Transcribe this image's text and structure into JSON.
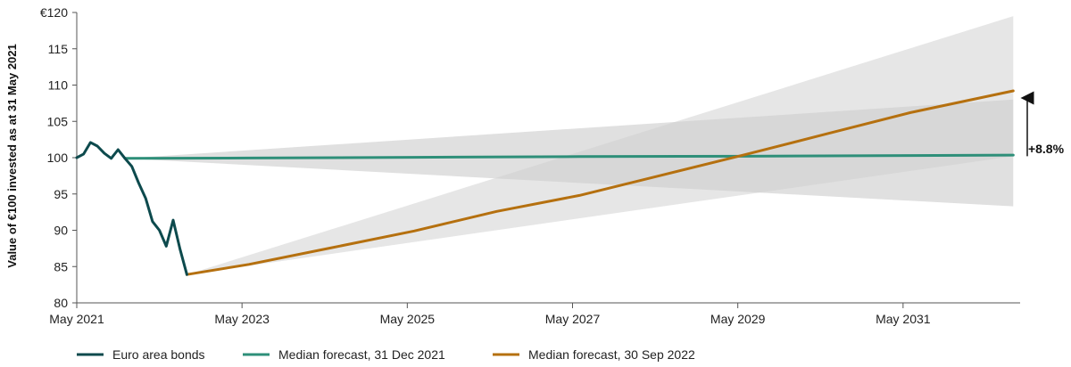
{
  "chart_data": {
    "type": "line",
    "title": "",
    "xlabel": "",
    "ylabel": "Value of €100 invested as at 31 May 2021",
    "xlim": [
      "2021-05",
      "2032-10"
    ],
    "ylim": [
      80,
      120
    ],
    "x_ticks": [
      "May 2021",
      "May 2023",
      "May 2025",
      "May 2027",
      "May 2029",
      "May 2031"
    ],
    "y_ticks": [
      "€120",
      "115",
      "110",
      "105",
      "100",
      "95",
      "90",
      "85",
      "80"
    ],
    "grid": false,
    "legend_position": "bottom-left",
    "series": [
      {
        "name": "Euro area bonds",
        "color": "#0d4a4d",
        "points": [
          [
            "2021-05",
            100.0
          ],
          [
            "2021-06",
            100.5
          ],
          [
            "2021-07",
            102.1
          ],
          [
            "2021-08",
            101.6
          ],
          [
            "2021-09",
            100.6
          ],
          [
            "2021-10",
            99.9
          ],
          [
            "2021-11",
            101.1
          ],
          [
            "2021-12",
            99.9
          ],
          [
            "2022-01",
            98.8
          ],
          [
            "2022-02",
            96.5
          ],
          [
            "2022-03",
            94.4
          ],
          [
            "2022-04",
            91.2
          ],
          [
            "2022-05",
            90.0
          ],
          [
            "2022-06",
            87.8
          ],
          [
            "2022-07",
            91.4
          ],
          [
            "2022-08",
            87.4
          ],
          [
            "2022-09",
            83.9
          ]
        ]
      },
      {
        "name": "Median forecast, 31 Dec 2021",
        "color": "#2e8f79",
        "points": [
          [
            "2021-12",
            99.9
          ],
          [
            "2023-06",
            99.95
          ],
          [
            "2025-06",
            100.05
          ],
          [
            "2027-06",
            100.15
          ],
          [
            "2029-06",
            100.2
          ],
          [
            "2031-06",
            100.3
          ],
          [
            "2032-09",
            100.35
          ]
        ],
        "band_outer": [
          [
            "2021-12",
            99.9,
            99.9
          ],
          [
            "2032-09",
            108.0,
            93.3
          ]
        ]
      },
      {
        "name": "Median forecast, 30 Sep 2022",
        "color": "#b5700f",
        "points": [
          [
            "2022-09",
            83.9
          ],
          [
            "2023-06",
            85.3
          ],
          [
            "2024-06",
            87.6
          ],
          [
            "2025-06",
            89.9
          ],
          [
            "2026-06",
            92.6
          ],
          [
            "2027-06",
            94.8
          ],
          [
            "2028-06",
            97.6
          ],
          [
            "2029-06",
            100.4
          ],
          [
            "2030-06",
            103.3
          ],
          [
            "2031-06",
            106.2
          ],
          [
            "2032-09",
            109.2
          ]
        ],
        "band_outer": [
          [
            "2022-09",
            83.9,
            83.9
          ],
          [
            "2032-09",
            119.5,
            100.2
          ]
        ]
      }
    ],
    "annotations": [
      {
        "text": "+8.8%",
        "x": "2032-09",
        "y_from": 100.2,
        "y_to": 109.2
      }
    ]
  }
}
